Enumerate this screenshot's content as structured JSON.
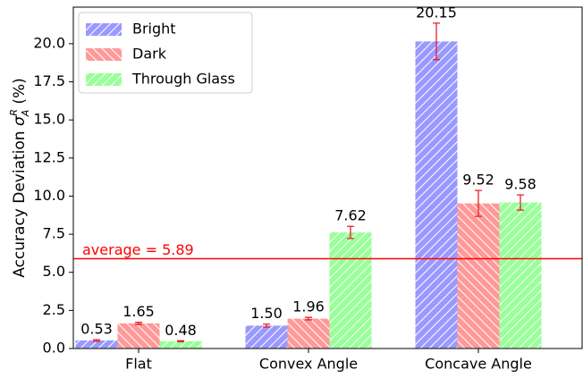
{
  "chart_data": {
    "type": "bar",
    "ylabel": [
      "Accuracy Deviation ",
      "σ",
      "A",
      "R",
      " (%)"
    ],
    "categories": [
      "Flat",
      "Convex Angle",
      "Concave Angle"
    ],
    "series": [
      {
        "name": "Bright",
        "color": "#9999ff",
        "hatch": "//",
        "values": [
          0.53,
          1.5,
          20.15
        ],
        "value_labels": [
          "0.53",
          "1.50",
          "20.15"
        ],
        "errors": [
          0.05,
          0.1,
          1.2
        ]
      },
      {
        "name": "Dark",
        "color": "#ff9999",
        "hatch": "\\\\",
        "values": [
          1.65,
          1.96,
          9.52
        ],
        "value_labels": [
          "1.65",
          "1.96",
          "9.52"
        ],
        "errors": [
          0.07,
          0.08,
          0.85
        ]
      },
      {
        "name": "Through Glass",
        "color": "#99ff99",
        "hatch": "//",
        "values": [
          0.48,
          7.62,
          9.58
        ],
        "value_labels": [
          "0.48",
          "7.62",
          "9.58"
        ],
        "errors": [
          0.03,
          0.4,
          0.5
        ]
      }
    ],
    "error_color": "#e8202a",
    "average": {
      "value": 5.89,
      "label": "average = 5.89",
      "color": "#ff0000"
    },
    "ylim": [
      0,
      22.4
    ],
    "yticks": [
      {
        "value": 0,
        "label": "0.0"
      },
      {
        "value": 2.5,
        "label": "2.5"
      },
      {
        "value": 5,
        "label": "5.0"
      },
      {
        "value": 7.5,
        "label": "7.5"
      },
      {
        "value": 10,
        "label": "10.0"
      },
      {
        "value": 12.5,
        "label": "12.5"
      },
      {
        "value": 15,
        "label": "15.0"
      },
      {
        "value": 17.5,
        "label": "17.5"
      },
      {
        "value": 20,
        "label": "20.0"
      }
    ],
    "legend": "upper left"
  }
}
